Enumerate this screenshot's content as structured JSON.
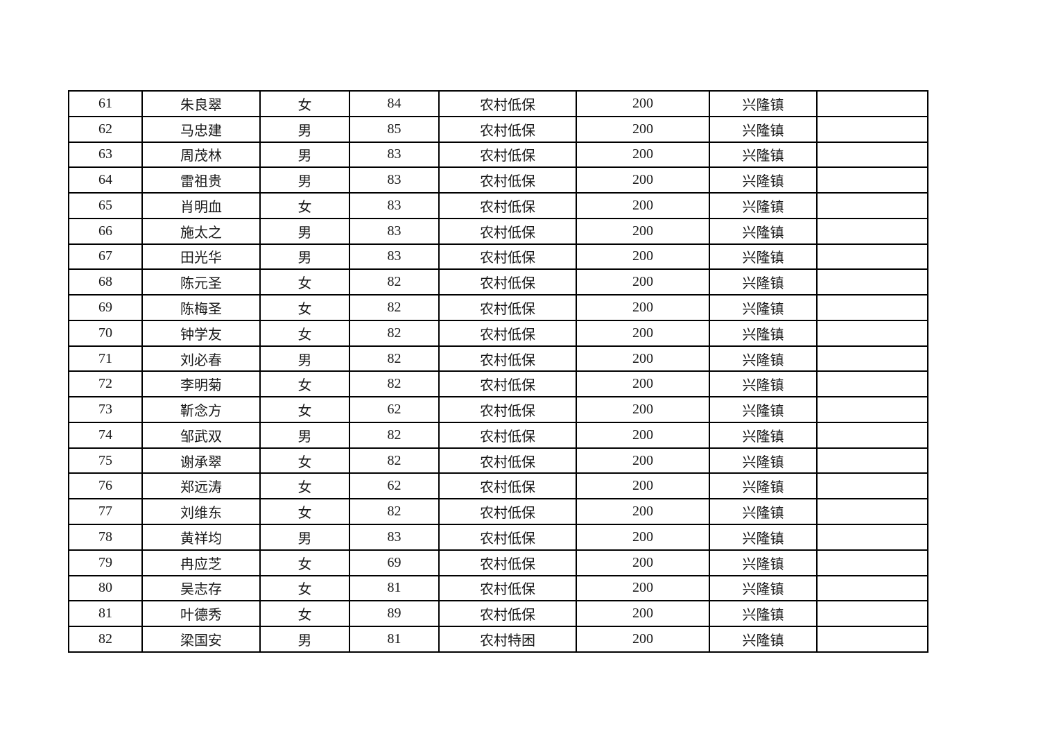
{
  "table": {
    "column_keys": [
      "no",
      "name",
      "gender",
      "age",
      "type",
      "amount",
      "town",
      "note"
    ],
    "rows": [
      {
        "no": "61",
        "name": "朱良翠",
        "gender": "女",
        "age": "84",
        "type": "农村低保",
        "amount": "200",
        "town": "兴隆镇",
        "note": ""
      },
      {
        "no": "62",
        "name": "马忠建",
        "gender": "男",
        "age": "85",
        "type": "农村低保",
        "amount": "200",
        "town": "兴隆镇",
        "note": ""
      },
      {
        "no": "63",
        "name": "周茂林",
        "gender": "男",
        "age": "83",
        "type": "农村低保",
        "amount": "200",
        "town": "兴隆镇",
        "note": ""
      },
      {
        "no": "64",
        "name": "雷祖贵",
        "gender": "男",
        "age": "83",
        "type": "农村低保",
        "amount": "200",
        "town": "兴隆镇",
        "note": ""
      },
      {
        "no": "65",
        "name": "肖明血",
        "gender": "女",
        "age": "83",
        "type": "农村低保",
        "amount": "200",
        "town": "兴隆镇",
        "note": ""
      },
      {
        "no": "66",
        "name": "施太之",
        "gender": "男",
        "age": "83",
        "type": "农村低保",
        "amount": "200",
        "town": "兴隆镇",
        "note": ""
      },
      {
        "no": "67",
        "name": "田光华",
        "gender": "男",
        "age": "83",
        "type": "农村低保",
        "amount": "200",
        "town": "兴隆镇",
        "note": ""
      },
      {
        "no": "68",
        "name": "陈元圣",
        "gender": "女",
        "age": "82",
        "type": "农村低保",
        "amount": "200",
        "town": "兴隆镇",
        "note": ""
      },
      {
        "no": "69",
        "name": "陈梅圣",
        "gender": "女",
        "age": "82",
        "type": "农村低保",
        "amount": "200",
        "town": "兴隆镇",
        "note": ""
      },
      {
        "no": "70",
        "name": "钟学友",
        "gender": "女",
        "age": "82",
        "type": "农村低保",
        "amount": "200",
        "town": "兴隆镇",
        "note": ""
      },
      {
        "no": "71",
        "name": "刘必春",
        "gender": "男",
        "age": "82",
        "type": "农村低保",
        "amount": "200",
        "town": "兴隆镇",
        "note": ""
      },
      {
        "no": "72",
        "name": "李明菊",
        "gender": "女",
        "age": "82",
        "type": "农村低保",
        "amount": "200",
        "town": "兴隆镇",
        "note": ""
      },
      {
        "no": "73",
        "name": "靳念方",
        "gender": "女",
        "age": "62",
        "type": "农村低保",
        "amount": "200",
        "town": "兴隆镇",
        "note": ""
      },
      {
        "no": "74",
        "name": "邹武双",
        "gender": "男",
        "age": "82",
        "type": "农村低保",
        "amount": "200",
        "town": "兴隆镇",
        "note": ""
      },
      {
        "no": "75",
        "name": "谢承翠",
        "gender": "女",
        "age": "82",
        "type": "农村低保",
        "amount": "200",
        "town": "兴隆镇",
        "note": ""
      },
      {
        "no": "76",
        "name": "郑远涛",
        "gender": "女",
        "age": "62",
        "type": "农村低保",
        "amount": "200",
        "town": "兴隆镇",
        "note": ""
      },
      {
        "no": "77",
        "name": "刘维东",
        "gender": "女",
        "age": "82",
        "type": "农村低保",
        "amount": "200",
        "town": "兴隆镇",
        "note": ""
      },
      {
        "no": "78",
        "name": "黄祥均",
        "gender": "男",
        "age": "83",
        "type": "农村低保",
        "amount": "200",
        "town": "兴隆镇",
        "note": ""
      },
      {
        "no": "79",
        "name": "冉应芝",
        "gender": "女",
        "age": "69",
        "type": "农村低保",
        "amount": "200",
        "town": "兴隆镇",
        "note": ""
      },
      {
        "no": "80",
        "name": "吴志存",
        "gender": "女",
        "age": "81",
        "type": "农村低保",
        "amount": "200",
        "town": "兴隆镇",
        "note": ""
      },
      {
        "no": "81",
        "name": "叶德秀",
        "gender": "女",
        "age": "89",
        "type": "农村低保",
        "amount": "200",
        "town": "兴隆镇",
        "note": ""
      },
      {
        "no": "82",
        "name": "梁国安",
        "gender": "男",
        "age": "81",
        "type": "农村特困",
        "amount": "200",
        "town": "兴隆镇",
        "note": ""
      }
    ],
    "colors": {
      "border": "#000000",
      "text": "#1a1a1a",
      "background": "#ffffff"
    }
  }
}
